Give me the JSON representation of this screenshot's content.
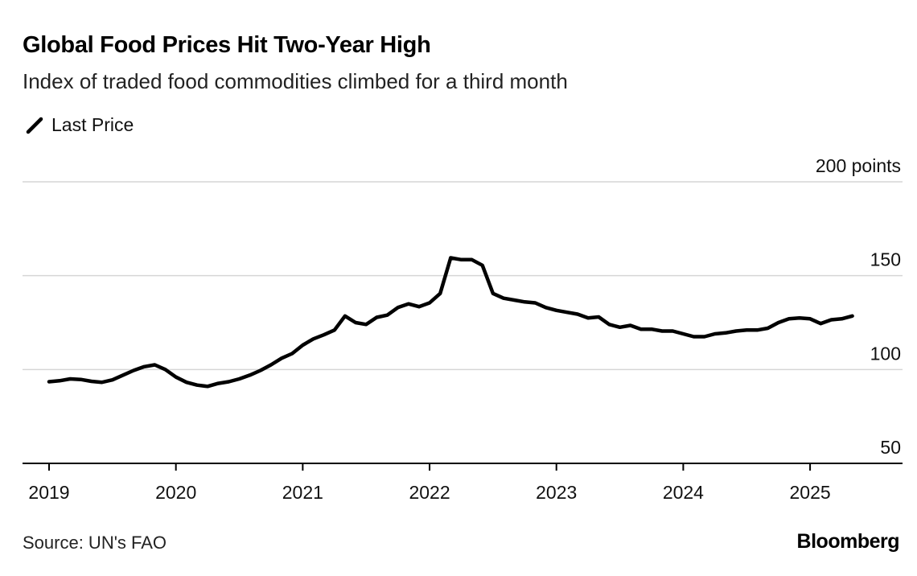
{
  "header": {
    "title": "Global Food Prices Hit Two-Year High",
    "subtitle": "Index of traded food commodities climbed for a third month"
  },
  "footer": {
    "source": "Source: UN's FAO",
    "brand": "Bloomberg"
  },
  "colors": {
    "line": "#000000",
    "grid": "#d6d6d6",
    "axis": "#000000",
    "text": "#111111",
    "background": "#ffffff"
  },
  "chart_data": {
    "type": "line",
    "title": "Global Food Prices Hit Two-Year High",
    "subtitle": "Index of traded food commodities climbed for a third month",
    "legend": {
      "entries": [
        "Last Price"
      ],
      "position": "top-left"
    },
    "unit_label": "200 points",
    "ylim": [
      50,
      200
    ],
    "y_ticks": [
      50,
      100,
      150,
      200
    ],
    "y_tick_labels": [
      "50",
      "100",
      "150",
      "200 points"
    ],
    "xlim": [
      "2019-01",
      "2025-10"
    ],
    "x_ticks": [
      "2019-01",
      "2020-01",
      "2021-01",
      "2022-01",
      "2023-01",
      "2024-01",
      "2025-01"
    ],
    "x_tick_labels": [
      "2019",
      "2020",
      "2021",
      "2022",
      "2023",
      "2024",
      "2025"
    ],
    "grid": true,
    "series": [
      {
        "name": "Last Price",
        "x": [
          "2019-01",
          "2019-02",
          "2019-03",
          "2019-04",
          "2019-05",
          "2019-06",
          "2019-07",
          "2019-08",
          "2019-09",
          "2019-10",
          "2019-11",
          "2019-12",
          "2020-01",
          "2020-02",
          "2020-03",
          "2020-04",
          "2020-05",
          "2020-06",
          "2020-07",
          "2020-08",
          "2020-09",
          "2020-10",
          "2020-11",
          "2020-12",
          "2021-01",
          "2021-02",
          "2021-03",
          "2021-04",
          "2021-05",
          "2021-06",
          "2021-07",
          "2021-08",
          "2021-09",
          "2021-10",
          "2021-11",
          "2021-12",
          "2022-01",
          "2022-02",
          "2022-03",
          "2022-04",
          "2022-05",
          "2022-06",
          "2022-07",
          "2022-08",
          "2022-09",
          "2022-10",
          "2022-11",
          "2022-12",
          "2023-01",
          "2023-02",
          "2023-03",
          "2023-04",
          "2023-05",
          "2023-06",
          "2023-07",
          "2023-08",
          "2023-09",
          "2023-10",
          "2023-11",
          "2023-12",
          "2024-01",
          "2024-02",
          "2024-03",
          "2024-04",
          "2024-05",
          "2024-06",
          "2024-07",
          "2024-08",
          "2024-09",
          "2024-10",
          "2024-11",
          "2024-12",
          "2025-01",
          "2025-02",
          "2025-03",
          "2025-04",
          "2025-05"
        ],
        "values": [
          93.5,
          94,
          95,
          94.7,
          93.7,
          93.2,
          94.5,
          97,
          99.5,
          101.5,
          102.5,
          100,
          96,
          93.2,
          91.7,
          91,
          92.6,
          93.5,
          95,
          97,
          99.5,
          102.5,
          106,
          108.5,
          113,
          116.3,
          118.5,
          121,
          128.5,
          125,
          124,
          127.8,
          129,
          133,
          135,
          133.5,
          135.5,
          140.5,
          159.5,
          158.5,
          158.5,
          155.5,
          140.5,
          138,
          137,
          136,
          135.5,
          133,
          131.5,
          130.5,
          129.5,
          127.5,
          128,
          124,
          122.5,
          123.5,
          121.5,
          121.5,
          120.5,
          120.5,
          119,
          117.5,
          117.5,
          119,
          119.5,
          120.5,
          121,
          121,
          122,
          125,
          127,
          127.5,
          127,
          124.5,
          126.5,
          127,
          128.5
        ]
      }
    ]
  }
}
